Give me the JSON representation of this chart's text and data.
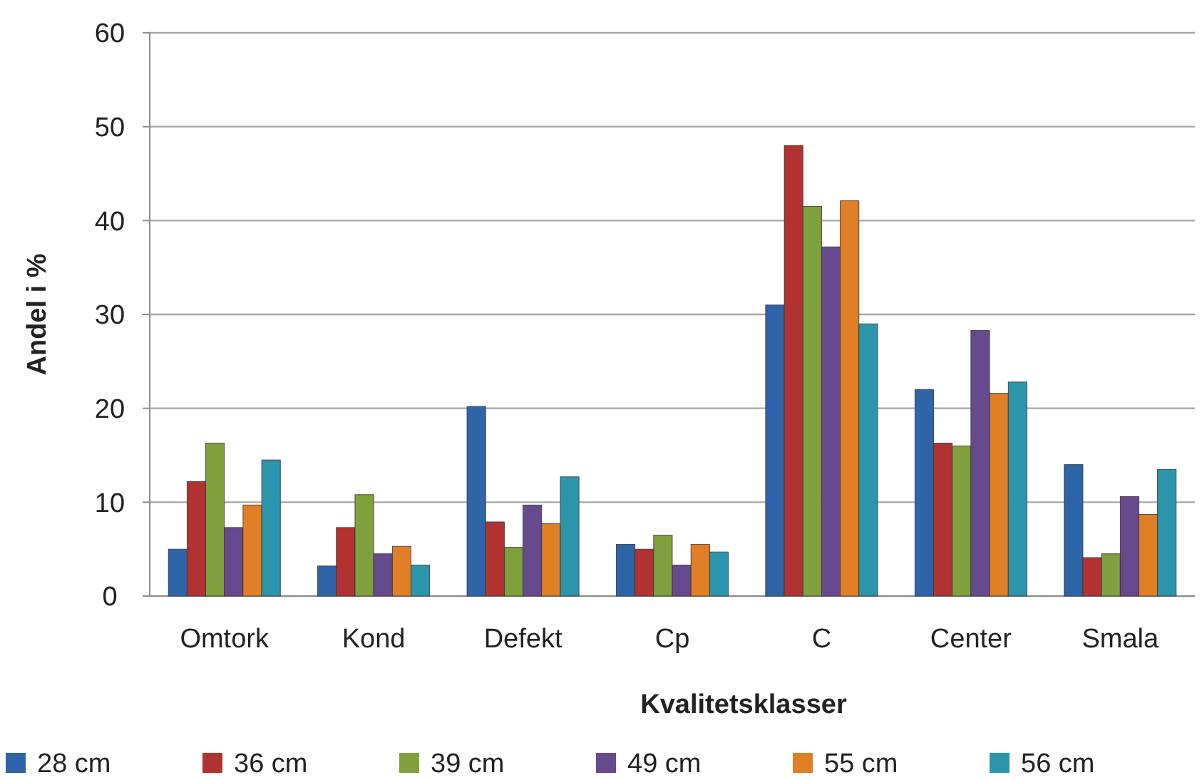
{
  "chart_data": {
    "type": "bar",
    "xlabel": "Kvalitetsklasser",
    "ylabel": "Andel i %",
    "categories": [
      "Omtork",
      "Kond",
      "Defekt",
      "Cp",
      "C",
      "Center",
      "Smala"
    ],
    "series": [
      {
        "name": "28 cm",
        "color": "#2e64a8",
        "values": [
          5,
          3.2,
          20.2,
          5.5,
          31,
          22,
          14
        ]
      },
      {
        "name": "36 cm",
        "color": "#b03332",
        "values": [
          12.2,
          7.3,
          7.9,
          5,
          48,
          16.3,
          4.1
        ]
      },
      {
        "name": "39 cm",
        "color": "#7fa03c",
        "values": [
          16.3,
          10.8,
          5.2,
          6.5,
          41.5,
          16,
          4.5
        ]
      },
      {
        "name": "49 cm",
        "color": "#674a8e",
        "values": [
          7.3,
          4.5,
          9.7,
          3.3,
          37.2,
          28.3,
          10.6
        ]
      },
      {
        "name": "55 cm",
        "color": "#e07f26",
        "values": [
          9.7,
          5.3,
          7.7,
          5.5,
          42.1,
          21.6,
          8.7
        ]
      },
      {
        "name": "56 cm",
        "color": "#2c94ab",
        "values": [
          14.5,
          3.3,
          12.7,
          4.7,
          29,
          22.8,
          13.5
        ]
      }
    ],
    "ylim": [
      0,
      60
    ],
    "yticks": [
      0,
      10,
      20,
      30,
      40,
      50,
      60
    ],
    "grid": "y",
    "legend": "bottom"
  }
}
